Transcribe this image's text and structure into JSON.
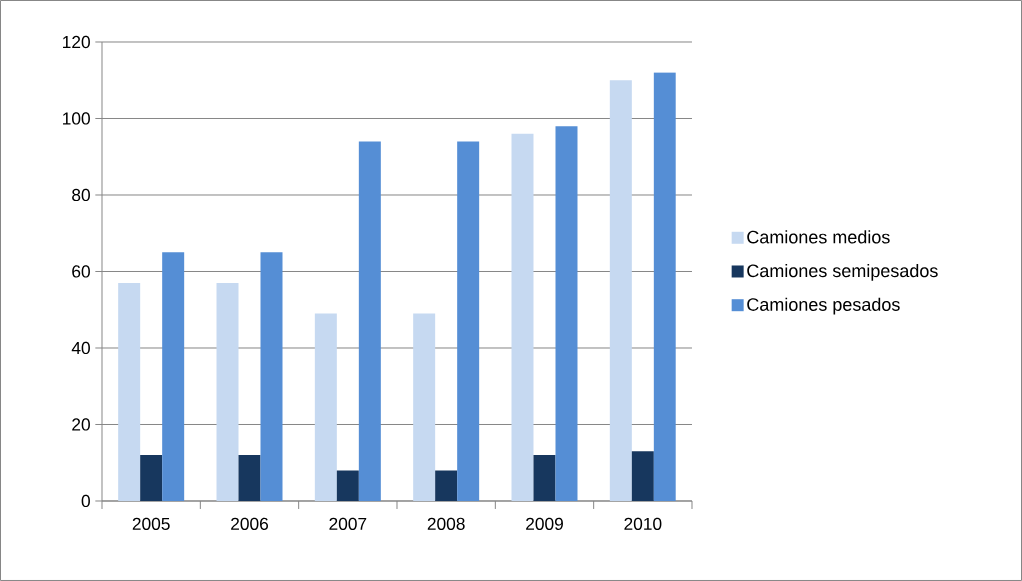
{
  "chart_data": {
    "type": "bar",
    "categories": [
      "2005",
      "2006",
      "2007",
      "2008",
      "2009",
      "2010"
    ],
    "series": [
      {
        "name": "Camiones medios",
        "color": "#c6d9f1",
        "values": [
          57,
          57,
          49,
          49,
          96,
          110
        ]
      },
      {
        "name": "Camiones semipesados",
        "color": "#17375e",
        "values": [
          12,
          12,
          8,
          8,
          12,
          13
        ]
      },
      {
        "name": "Camiones pesados",
        "color": "#558ed5",
        "values": [
          65,
          65,
          94,
          94,
          98,
          112
        ]
      }
    ],
    "ylim": [
      0,
      120
    ],
    "yticks": [
      0,
      20,
      40,
      60,
      80,
      100,
      120
    ],
    "grid": "y",
    "legend": "right"
  }
}
